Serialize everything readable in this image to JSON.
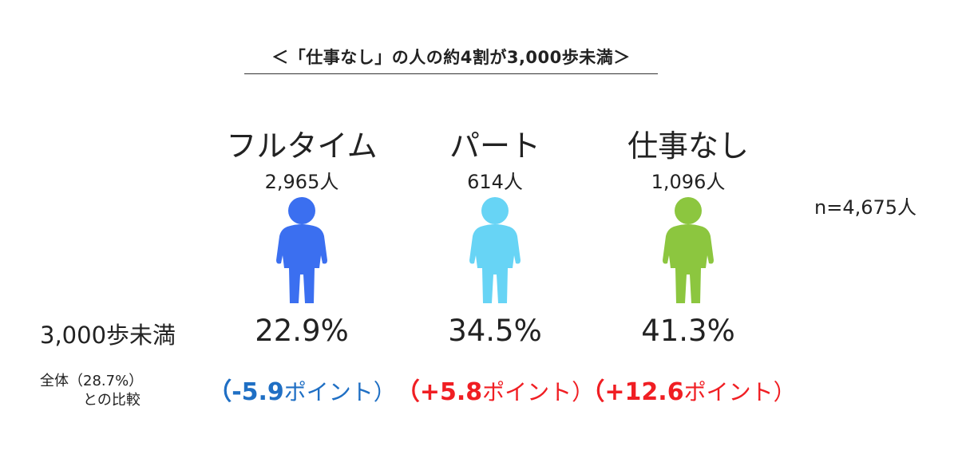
{
  "title": "＜「仕事なし」の人の約4割が3,000歩未満＞",
  "sample_size": "n=4,675人",
  "row_label": "3,000歩未満",
  "compare_label": {
    "line1": "全体（28.7%）",
    "line2": "との比較"
  },
  "groups": [
    {
      "label": "フルタイム",
      "count": "2,965人",
      "icon": "person-icon",
      "icon_color": "#3b6ff0",
      "percent": "22.9%",
      "diff_open": "（",
      "diff_value": "-5.9",
      "diff_suffix": "ポイント）",
      "diff_color": "#1f6fc4"
    },
    {
      "label": "パート",
      "count": "614人",
      "icon": "person-icon",
      "icon_color": "#67d4f5",
      "percent": "34.5%",
      "diff_open": "（",
      "diff_value": "+5.8",
      "diff_suffix": "ポイント）",
      "diff_color": "#f01e23"
    },
    {
      "label": "仕事なし",
      "count": "1,096人",
      "icon": "person-icon",
      "icon_color": "#8cc63f",
      "percent": "41.3%",
      "diff_open": "（",
      "diff_value": "+12.6",
      "diff_suffix": "ポイント）",
      "diff_color": "#f01e23"
    }
  ]
}
